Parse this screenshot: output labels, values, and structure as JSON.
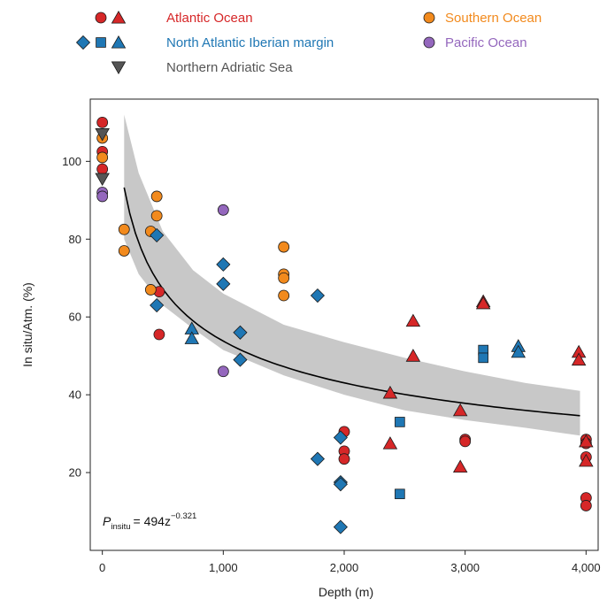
{
  "chart_data": {
    "type": "scatter",
    "xlabel": "Depth (m)",
    "ylabel": "In situ/Atm. (%)",
    "xlim": [
      -100,
      4100
    ],
    "ylim": [
      0,
      116
    ],
    "x_ticks": [
      0,
      1000,
      2000,
      3000,
      4000
    ],
    "x_tick_labels": [
      "0",
      "1,000",
      "2,000",
      "3,000",
      "4,000"
    ],
    "y_ticks": [
      20,
      40,
      60,
      80,
      100
    ],
    "y_tick_labels": [
      "20",
      "40",
      "60",
      "80",
      "100"
    ],
    "grid": false,
    "legend_position": "top",
    "legend": [
      {
        "label": "Atlantic Ocean",
        "color": "#d62728",
        "markers": [
          "circle",
          "triangle"
        ]
      },
      {
        "label": "Southern Ocean",
        "color": "#f28a1d",
        "markers": [
          "circle"
        ]
      },
      {
        "label": "North Atlantic Iberian margin",
        "color": "#1f77b4",
        "markers": [
          "diamond",
          "square",
          "triangle"
        ]
      },
      {
        "label": "Pacific Ocean",
        "color": "#9467bd",
        "markers": [
          "circle"
        ]
      },
      {
        "label": "Northern Adriatic Sea",
        "color": "#555555",
        "markers": [
          "triangle-down"
        ]
      }
    ],
    "fit": {
      "equation": {
        "lhs_base": "P",
        "lhs_sub": "insitu",
        "rhs": "= 494z",
        "rhs_exp": "−0.321"
      },
      "coefficient": 494,
      "exponent": -0.321,
      "x_range": [
        180,
        3950
      ],
      "band_upper": [
        [
          180,
          112
        ],
        [
          300,
          97
        ],
        [
          500,
          82
        ],
        [
          750,
          72
        ],
        [
          1000,
          66
        ],
        [
          1500,
          58
        ],
        [
          2000,
          53.5
        ],
        [
          2500,
          49.5
        ],
        [
          3000,
          46
        ],
        [
          3500,
          43
        ],
        [
          3950,
          41
        ]
      ],
      "band_lower": [
        [
          180,
          80
        ],
        [
          300,
          71
        ],
        [
          500,
          63
        ],
        [
          750,
          57
        ],
        [
          1000,
          51.5
        ],
        [
          1500,
          45
        ],
        [
          2000,
          40
        ],
        [
          2500,
          36
        ],
        [
          3000,
          33.5
        ],
        [
          3500,
          31.5
        ],
        [
          3950,
          29.5
        ]
      ],
      "line_color": "#000000",
      "band_color": "#c8c8c8"
    },
    "series": [
      {
        "name": "Atlantic Ocean",
        "marker": "circle",
        "color": "#d62728",
        "points": [
          [
            0,
            110
          ],
          [
            0,
            102.5
          ],
          [
            0,
            98
          ],
          [
            470,
            66.5
          ],
          [
            470,
            55.5
          ],
          [
            2000,
            30.5
          ],
          [
            2000,
            25.5
          ],
          [
            2000,
            23.5
          ],
          [
            3000,
            28.5
          ],
          [
            3000,
            28
          ],
          [
            4000,
            28.5
          ],
          [
            4000,
            27.5
          ],
          [
            4000,
            24
          ],
          [
            4000,
            13.5
          ],
          [
            4000,
            11.5
          ]
        ]
      },
      {
        "name": "Atlantic Ocean",
        "marker": "triangle",
        "color": "#d62728",
        "points": [
          [
            2380,
            40.5
          ],
          [
            2380,
            27.5
          ],
          [
            2570,
            59
          ],
          [
            2570,
            50
          ],
          [
            2960,
            36
          ],
          [
            2960,
            21.5
          ],
          [
            3150,
            64
          ],
          [
            3150,
            63.5
          ],
          [
            3940,
            51
          ],
          [
            3940,
            49
          ],
          [
            4000,
            28
          ],
          [
            4000,
            23
          ]
        ]
      },
      {
        "name": "Southern Ocean",
        "marker": "circle",
        "color": "#f28a1d",
        "points": [
          [
            0,
            106
          ],
          [
            0,
            101
          ],
          [
            180,
            82.5
          ],
          [
            180,
            77
          ],
          [
            400,
            82
          ],
          [
            400,
            67
          ],
          [
            450,
            91
          ],
          [
            450,
            86
          ],
          [
            1500,
            78
          ],
          [
            1500,
            71
          ],
          [
            1500,
            70
          ],
          [
            1500,
            65.5
          ]
        ]
      },
      {
        "name": "North Atlantic Iberian margin",
        "marker": "diamond",
        "color": "#1f77b4",
        "points": [
          [
            450,
            81
          ],
          [
            450,
            63
          ],
          [
            1000,
            73.5
          ],
          [
            1000,
            68.5
          ],
          [
            1140,
            56
          ],
          [
            1140,
            49
          ],
          [
            1780,
            65.5
          ],
          [
            1780,
            23.5
          ],
          [
            1970,
            29
          ],
          [
            1970,
            17.5
          ],
          [
            1970,
            17
          ],
          [
            1970,
            6
          ]
        ]
      },
      {
        "name": "North Atlantic Iberian margin",
        "marker": "square",
        "color": "#1f77b4",
        "points": [
          [
            2460,
            33
          ],
          [
            2460,
            14.5
          ],
          [
            3150,
            51.5
          ],
          [
            3150,
            49.5
          ]
        ]
      },
      {
        "name": "North Atlantic Iberian margin",
        "marker": "triangle",
        "color": "#1f77b4",
        "points": [
          [
            740,
            57
          ],
          [
            740,
            54.5
          ],
          [
            3440,
            52.5
          ],
          [
            3440,
            51
          ]
        ]
      },
      {
        "name": "Pacific Ocean",
        "marker": "circle",
        "color": "#9467bd",
        "points": [
          [
            0,
            92
          ],
          [
            0,
            91
          ],
          [
            1000,
            87.5
          ],
          [
            1000,
            46
          ]
        ]
      },
      {
        "name": "Northern Adriatic Sea",
        "marker": "triangle-down",
        "color": "#555555",
        "points": [
          [
            0,
            107
          ],
          [
            0,
            95.5
          ]
        ]
      }
    ]
  }
}
